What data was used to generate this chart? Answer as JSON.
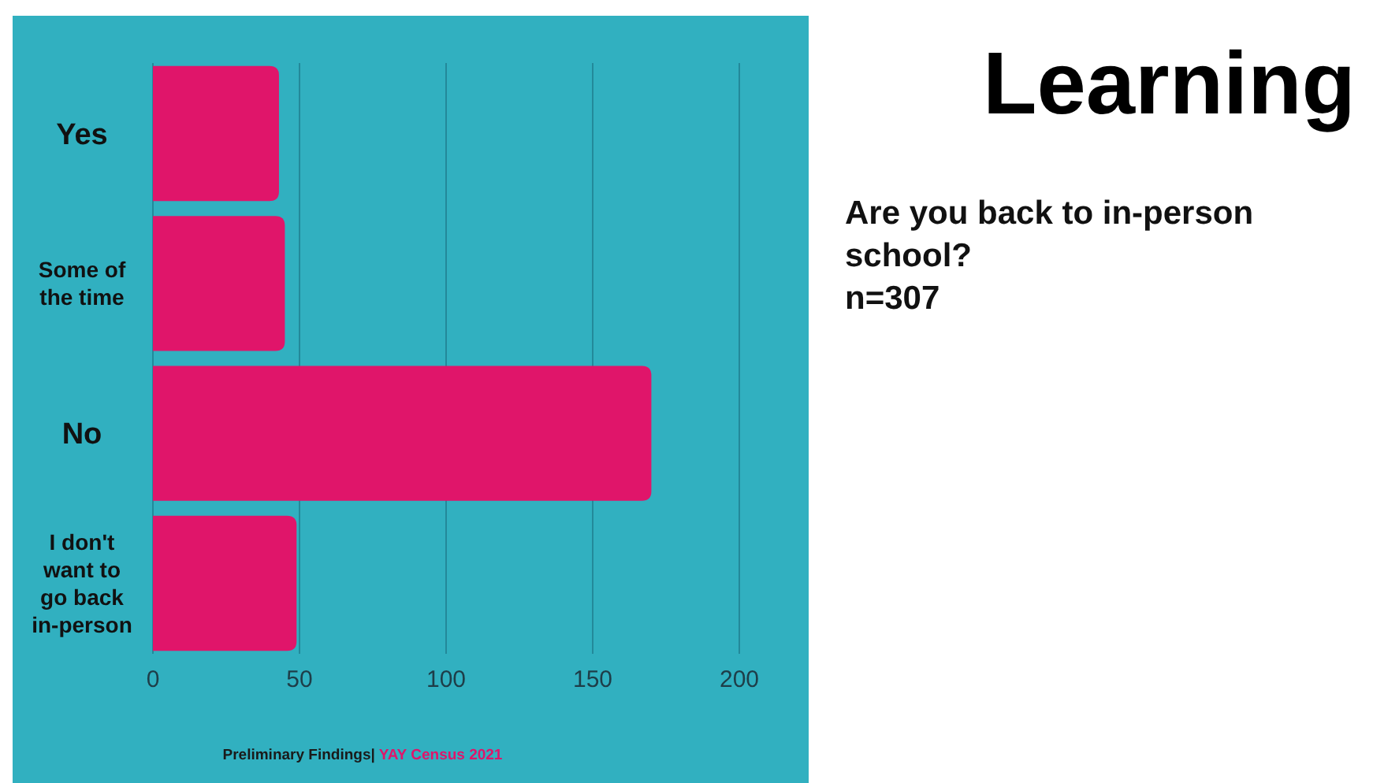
{
  "chart_data": {
    "type": "bar",
    "orientation": "horizontal",
    "title": "Learning",
    "subtitle": "Are you back to in-person school?\nn=307",
    "categories": [
      "Yes",
      "Some of the time",
      "No",
      "I don't want to go back in-person"
    ],
    "values": [
      43,
      45,
      170,
      49
    ],
    "color": "#e0156a",
    "xlim": [
      0,
      200
    ],
    "xticks": [
      0,
      50,
      100,
      150,
      200
    ],
    "grid": "x",
    "annotations": [
      "Preliminary Findings|",
      "YAY Census 2021"
    ]
  }
}
